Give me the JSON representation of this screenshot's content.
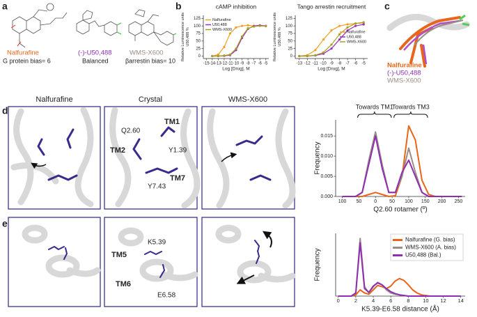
{
  "panel_labels": [
    "a",
    "b",
    "c",
    "d",
    "e"
  ],
  "panel_a": {
    "compounds": [
      {
        "name": "Nalfurafine",
        "note": "G protein bias= 6"
      },
      {
        "name": "(-)-U50,488",
        "note": "Balanced"
      },
      {
        "name": "WMS-X600",
        "note": "βarrestin bias= 10"
      }
    ]
  },
  "panel_c": {
    "labels": [
      "Nalfurafine",
      "(-)-U50,488",
      "WMS-X600"
    ]
  },
  "panel_d": {
    "titles": [
      "Nalfurafine",
      "Crystal",
      "WMS-X600"
    ],
    "labels": [
      "Q2.60",
      "TM1",
      "TM2",
      "Y1.39",
      "Y7.43",
      "TM7"
    ]
  },
  "panel_e": {
    "labels": [
      "K5.39",
      "TM5",
      "TM6",
      "E6.58"
    ]
  },
  "chart_data": [
    {
      "type": "line",
      "title": "cAMP inhibition",
      "xlabel": "Log [Drug], M",
      "ylabel": [
        "Relative Luminescence units",
        "U50,488 %"
      ],
      "x": [
        -14,
        -13,
        -12,
        -11,
        -10,
        -9,
        -8,
        -7,
        -6,
        -5
      ],
      "markers": true,
      "legend": "upper left",
      "series": [
        {
          "name": "Nalfurafine",
          "color": "#f0a020",
          "values": [
            0,
            5,
            30,
            75,
            95,
            100,
            102,
            100,
            101,
            100
          ]
        },
        {
          "name": "U50,488",
          "color": "#9b2fb5",
          "values": [
            0,
            0,
            1,
            3,
            20,
            60,
            90,
            100,
            102,
            100
          ]
        },
        {
          "name": "WMS-X600",
          "color": "#a7a020",
          "values": [
            0,
            0,
            2,
            5,
            25,
            65,
            92,
            98,
            100,
            99
          ]
        }
      ],
      "xlim": [
        -15.5,
        -4.5
      ],
      "xticks": [
        -15,
        -14,
        -13,
        -12,
        -11,
        -10,
        -9,
        -8,
        -7,
        -6,
        -5
      ],
      "ylim": [
        -8,
        135
      ],
      "yticks": [
        0,
        25,
        50,
        75,
        100,
        125
      ]
    },
    {
      "type": "line",
      "title": "Tango arrestin recruitment",
      "xlabel": "Log [Drug], M",
      "ylabel": [
        "Relative Luminescence units",
        "U50,488 %"
      ],
      "x": [
        -13,
        -12,
        -11,
        -10,
        -9,
        -8,
        -7,
        -6,
        -5
      ],
      "markers": true,
      "legend": "center right",
      "series": [
        {
          "name": "Nalfurafine",
          "color": "#f0a020",
          "values": [
            0,
            3,
            20,
            55,
            85,
            100,
            105,
            108,
            110
          ]
        },
        {
          "name": "U50,488",
          "color": "#9b2fb5",
          "values": [
            0,
            0,
            2,
            8,
            25,
            55,
            85,
            100,
            105
          ]
        },
        {
          "name": "WMS-X600",
          "color": "#a7a020",
          "values": [
            0,
            0,
            3,
            12,
            38,
            72,
            95,
            108,
            112
          ]
        }
      ],
      "xlim": [
        -13.5,
        -4.5
      ],
      "xticks": [
        -13,
        -12,
        -11,
        -10,
        -9,
        -8,
        -7,
        -6,
        -5
      ],
      "ylim": [
        -8,
        135
      ],
      "yticks": [
        0,
        25,
        50,
        75,
        100,
        125
      ]
    },
    {
      "type": "line",
      "xlabel": "Q2.60 rotamer (º)",
      "ylabel": [
        "Frequency"
      ],
      "annotations": [
        "Towards TM1",
        "Towards TM3"
      ],
      "x": [
        -100,
        -80,
        -60,
        -40,
        -20,
        0,
        20,
        40,
        60,
        80,
        100,
        120,
        140,
        160,
        180,
        200,
        220,
        240,
        260
      ],
      "series": [
        {
          "color": "#e8651a",
          "values": [
            0,
            0,
            0,
            0,
            0.0005,
            0.001,
            0.0005,
            0,
            0.0002,
            0.005,
            0.0175,
            0.014,
            0.004,
            0.0005,
            0,
            0,
            0,
            0,
            0
          ]
        },
        {
          "color": "#9a8c86",
          "values": [
            0,
            0,
            0,
            0.001,
            0.009,
            0.016,
            0.008,
            0.001,
            0.001,
            0.005,
            0.012,
            0.006,
            0.001,
            0,
            0,
            0,
            0,
            0,
            0
          ]
        },
        {
          "color": "#8e2fb0",
          "values": [
            0,
            0,
            0,
            0.001,
            0.008,
            0.015,
            0.007,
            0.001,
            0.001,
            0.006,
            0.009,
            0.005,
            0.001,
            0,
            0,
            0,
            0,
            0,
            0
          ]
        }
      ],
      "xlim": [
        -120,
        270
      ],
      "xticks": [
        {
          "value": -100,
          "label": "100"
        },
        {
          "value": -50,
          "label": "50"
        },
        0,
        50,
        100,
        150,
        200,
        250
      ],
      "ylim": [
        0,
        0.019
      ],
      "yticks": [
        {
          "value": 0,
          "label": "0.000"
        },
        0.005,
        {
          "value": 0.01,
          "label": "0.010"
        },
        0.015
      ]
    },
    {
      "type": "line",
      "xlabel": "K5.39-E6.58 distance (Å)",
      "ylabel": [
        "Frequency"
      ],
      "legend": "upper right",
      "x": [
        0,
        0.5,
        1,
        1.5,
        2,
        2.5,
        3,
        3.5,
        4,
        4.5,
        5,
        5.5,
        6,
        6.5,
        7,
        7.5,
        8,
        8.5,
        9,
        9.5,
        10,
        10.5,
        11,
        11.5,
        12,
        12.5,
        13,
        13.5,
        14
      ],
      "series": [
        {
          "name": "Nalfurafine (G. bias)",
          "color": "#e8651a",
          "values": [
            0,
            0,
            0,
            0,
            0.02,
            0.1,
            0.05,
            0.03,
            0.1,
            0.17,
            0.15,
            0.12,
            0.16,
            0.24,
            0.28,
            0.25,
            0.18,
            0.1,
            0.05,
            0.02,
            0.01,
            0,
            0,
            0,
            0,
            0,
            0,
            0,
            0
          ]
        },
        {
          "name": "WMS-X600 (A. bias)",
          "color": "#9a8c86",
          "values": [
            0,
            0,
            0,
            0,
            0.05,
            0.92,
            0.15,
            0.05,
            0.15,
            0.22,
            0.18,
            0.1,
            0.05,
            0.03,
            0.02,
            0.01,
            0,
            0,
            0,
            0,
            0,
            0,
            0,
            0,
            0,
            0,
            0,
            0,
            0
          ]
        },
        {
          "name": "U50,488 (Bal.)",
          "color": "#8e2fb0",
          "values": [
            0,
            0,
            0,
            0,
            0.05,
            0.85,
            0.12,
            0.06,
            0.16,
            0.21,
            0.18,
            0.12,
            0.07,
            0.04,
            0.02,
            0.01,
            0,
            0,
            0,
            0,
            0,
            0,
            0,
            0,
            0,
            0,
            0,
            0,
            0
          ]
        }
      ],
      "xlim": [
        -0.3,
        14.5
      ],
      "xticks": [
        0,
        2,
        4,
        6,
        8,
        10,
        12,
        14
      ],
      "ylim": [
        0,
        1
      ]
    }
  ]
}
